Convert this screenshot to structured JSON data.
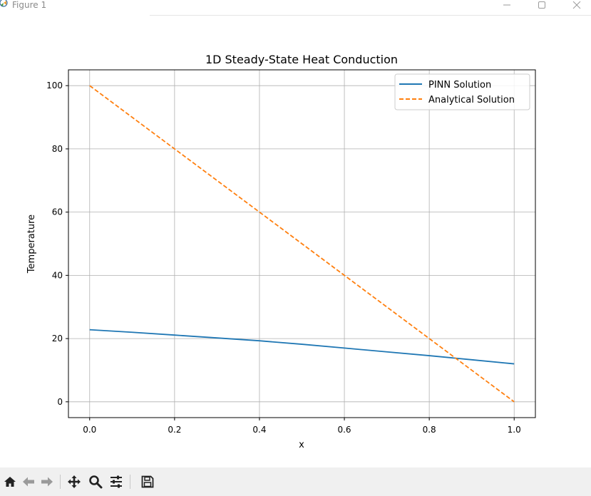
{
  "window": {
    "title": "Figure 1"
  },
  "toolbar": {
    "buttons": [
      {
        "name": "home-icon",
        "tooltip": "Home"
      },
      {
        "name": "back-arrow-icon",
        "tooltip": "Back"
      },
      {
        "name": "forward-arrow-icon",
        "tooltip": "Forward"
      },
      {
        "name": "pan-icon",
        "tooltip": "Pan"
      },
      {
        "name": "zoom-icon",
        "tooltip": "Zoom"
      },
      {
        "name": "configure-subplots-icon",
        "tooltip": "Configure subplots"
      },
      {
        "name": "save-icon",
        "tooltip": "Save"
      }
    ]
  },
  "colors": {
    "pinn": "#1f77b4",
    "analytical": "#ff7f0e",
    "grid": "#b0b0b0"
  },
  "chart_data": {
    "type": "line",
    "title": "1D Steady-State Heat Conduction",
    "xlabel": "x",
    "ylabel": "Temperature",
    "xlim": [
      -0.05,
      1.05
    ],
    "ylim": [
      -5,
      105
    ],
    "xticks": [
      0.0,
      0.2,
      0.4,
      0.6,
      0.8,
      1.0
    ],
    "xtick_labels": [
      "0.0",
      "0.2",
      "0.4",
      "0.6",
      "0.8",
      "1.0"
    ],
    "yticks": [
      0,
      20,
      40,
      60,
      80,
      100
    ],
    "ytick_labels": [
      "0",
      "20",
      "40",
      "60",
      "80",
      "100"
    ],
    "grid": true,
    "legend_position": "top-right",
    "series": [
      {
        "name": "PINN Solution",
        "style": "solid",
        "color": "#1f77b4",
        "x": [
          0.0,
          0.1,
          0.2,
          0.3,
          0.4,
          0.5,
          0.6,
          0.7,
          0.8,
          0.9,
          1.0
        ],
        "y": [
          22.8,
          22.0,
          21.1,
          20.2,
          19.3,
          18.2,
          17.0,
          15.8,
          14.6,
          13.3,
          12.0
        ]
      },
      {
        "name": "Analytical Solution",
        "style": "dashed",
        "color": "#ff7f0e",
        "x": [
          0.0,
          1.0
        ],
        "y": [
          100,
          0
        ]
      }
    ]
  }
}
